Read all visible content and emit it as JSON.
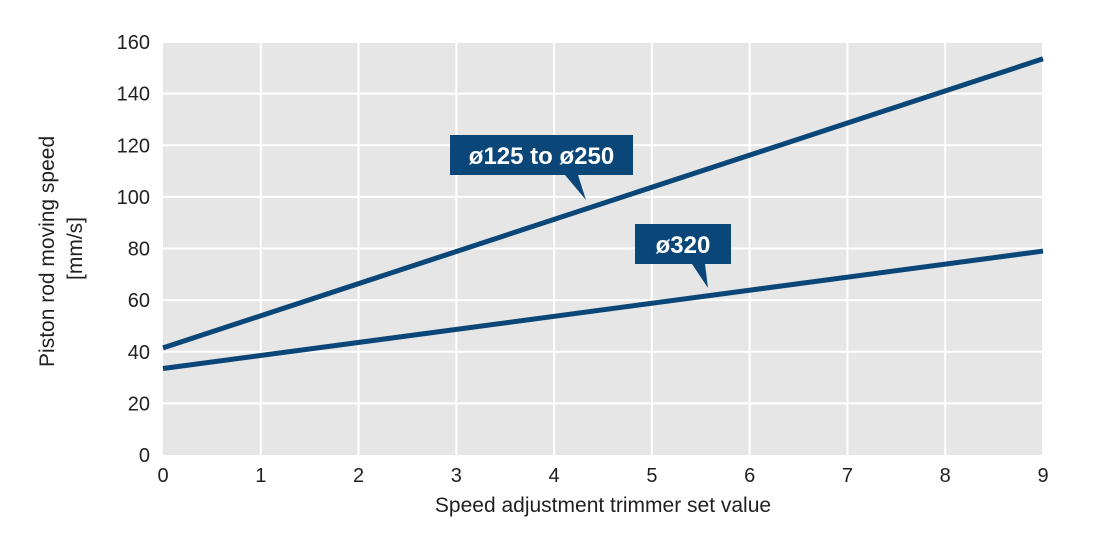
{
  "chart_data": {
    "type": "line",
    "xlabel": "Speed adjustment trimmer set value",
    "ylabel_lines": [
      "Piston rod moving speed",
      "[mm/s]"
    ],
    "xlim": [
      0,
      9
    ],
    "ylim": [
      0,
      160
    ],
    "xticks": [
      0,
      1,
      2,
      3,
      4,
      5,
      6,
      7,
      8,
      9
    ],
    "yticks": [
      0,
      20,
      40,
      60,
      80,
      100,
      120,
      140,
      160
    ],
    "xtick_labels": [
      "0",
      "1",
      "2",
      "3",
      "4",
      "5",
      "6",
      "7",
      "8",
      "9"
    ],
    "ytick_labels": [
      "0",
      "20",
      "40",
      "60",
      "80",
      "100",
      "120",
      "140",
      "160"
    ],
    "grid": true,
    "series": [
      {
        "name": "ø125 to ø250",
        "x": [
          0,
          9
        ],
        "y": [
          41.5,
          153.5
        ]
      },
      {
        "name": "ø320",
        "x": [
          0,
          9
        ],
        "y": [
          33.5,
          79
        ]
      }
    ],
    "colors": {
      "plot_background": "#e6e6e7",
      "grid": "#ffffff",
      "line": "#0a4677",
      "callout_background": "#0a4677",
      "callout_text": "#ffffff",
      "text": "#231f20"
    }
  }
}
